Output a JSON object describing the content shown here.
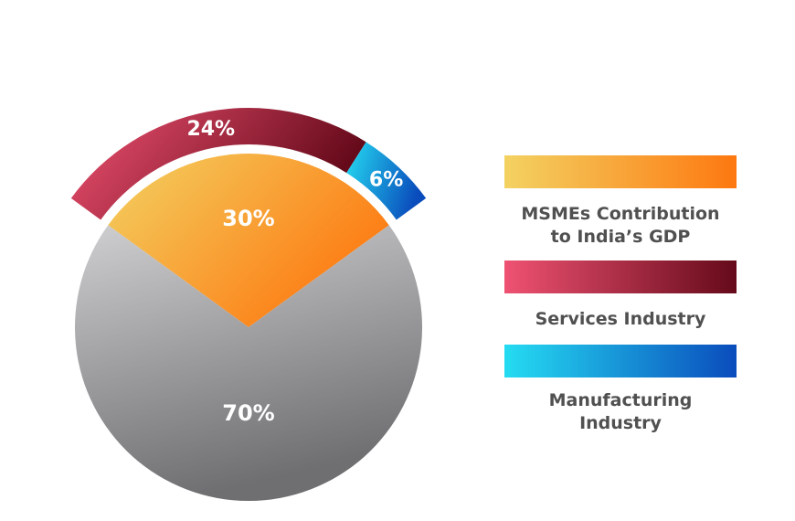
{
  "chart_data": {
    "type": "pie",
    "series": [
      {
        "name": "MSMEs Contribution to India’s GDP",
        "color": [
          "#f3d262",
          "#fd7810"
        ],
        "values": [
          30
        ],
        "value_labels": [
          "30%"
        ]
      },
      {
        "name": "Services Industry",
        "color": [
          "#ef5272",
          "#650a1a"
        ],
        "values": [
          24
        ],
        "value_labels": [
          "24%"
        ]
      },
      {
        "name": "Manufacturing Industry",
        "color": [
          "#25dcf2",
          "#0a4cbc"
        ],
        "values": [
          6
        ],
        "value_labels": [
          "6%"
        ]
      }
    ],
    "remainder": {
      "values": [
        70
      ],
      "value_labels": [
        "70%"
      ],
      "color": [
        "#cfcfd1",
        "#6f6f72"
      ]
    }
  }
}
